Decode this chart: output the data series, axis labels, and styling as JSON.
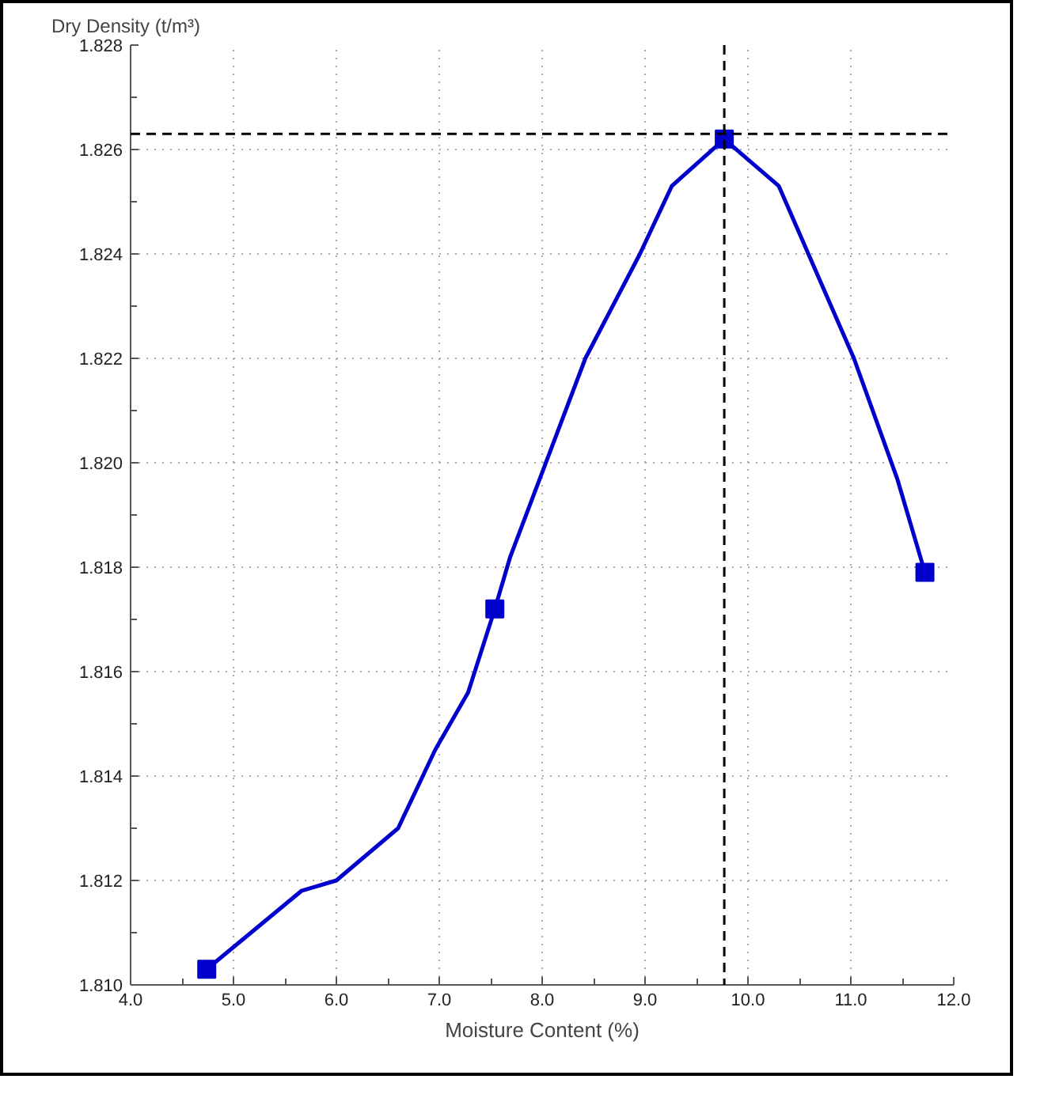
{
  "chart_data": {
    "type": "line",
    "xlabel": "Moisture Content (%)",
    "ylabel": "Dry Density (t/m³)",
    "series": [
      {
        "color": "#0000cc",
        "marker": "none",
        "x": [
          4.74,
          5.66,
          6.0,
          6.6,
          6.96,
          7.28,
          7.54,
          7.69,
          8.42,
          8.95,
          9.26,
          9.77,
          10.3,
          11.03,
          11.45,
          11.72
        ],
        "values": [
          1.8103,
          1.8118,
          1.812,
          1.813,
          1.8145,
          1.8156,
          1.8172,
          1.8182,
          1.822,
          1.824,
          1.8253,
          1.8262,
          1.8253,
          1.822,
          1.8197,
          1.8179
        ]
      },
      {
        "type": "scatter",
        "color": "#0000cc",
        "marker": "square",
        "x": [
          4.74,
          7.54,
          9.77,
          11.72
        ],
        "values": [
          1.8103,
          1.8172,
          1.8262,
          1.8179
        ]
      }
    ],
    "ref_lines": [
      {
        "axis": "x",
        "value": 9.77,
        "color": "#000000",
        "line_style": "dashed"
      },
      {
        "axis": "y",
        "value": 1.8263,
        "color": "#000000",
        "line_style": "dashed"
      }
    ],
    "xlim": [
      4.0,
      12.0
    ],
    "ylim": [
      1.81,
      1.828
    ],
    "xticks": [
      {
        "value": 4.0,
        "label": "4.0"
      },
      {
        "value": 4.5,
        "label": null
      },
      {
        "value": 5.0,
        "label": "5.0"
      },
      {
        "value": 5.5,
        "label": null
      },
      {
        "value": 6.0,
        "label": "6.0"
      },
      {
        "value": 6.5,
        "label": null
      },
      {
        "value": 7.0,
        "label": "7.0"
      },
      {
        "value": 7.5,
        "label": null
      },
      {
        "value": 8.0,
        "label": "8.0"
      },
      {
        "value": 8.5,
        "label": null
      },
      {
        "value": 9.0,
        "label": "9.0"
      },
      {
        "value": 9.5,
        "label": null
      },
      {
        "value": 10.0,
        "label": "10.0"
      },
      {
        "value": 10.5,
        "label": null
      },
      {
        "value": 11.0,
        "label": "11.0"
      },
      {
        "value": 11.5,
        "label": null
      },
      {
        "value": 12.0,
        "label": "12.0"
      }
    ],
    "yticks": [
      {
        "value": 1.81,
        "label": "1.810"
      },
      {
        "value": 1.811,
        "label": null
      },
      {
        "value": 1.812,
        "label": "1.812"
      },
      {
        "value": 1.813,
        "label": null
      },
      {
        "value": 1.814,
        "label": "1.814"
      },
      {
        "value": 1.815,
        "label": null
      },
      {
        "value": 1.816,
        "label": "1.816"
      },
      {
        "value": 1.817,
        "label": null
      },
      {
        "value": 1.818,
        "label": "1.818"
      },
      {
        "value": 1.819,
        "label": null
      },
      {
        "value": 1.82,
        "label": "1.820"
      },
      {
        "value": 1.821,
        "label": null
      },
      {
        "value": 1.822,
        "label": "1.822"
      },
      {
        "value": 1.823,
        "label": null
      },
      {
        "value": 1.824,
        "label": "1.824"
      },
      {
        "value": 1.825,
        "label": null
      },
      {
        "value": 1.826,
        "label": "1.826"
      },
      {
        "value": 1.827,
        "label": null
      },
      {
        "value": 1.828,
        "label": "1.828"
      }
    ],
    "grid": true
  }
}
